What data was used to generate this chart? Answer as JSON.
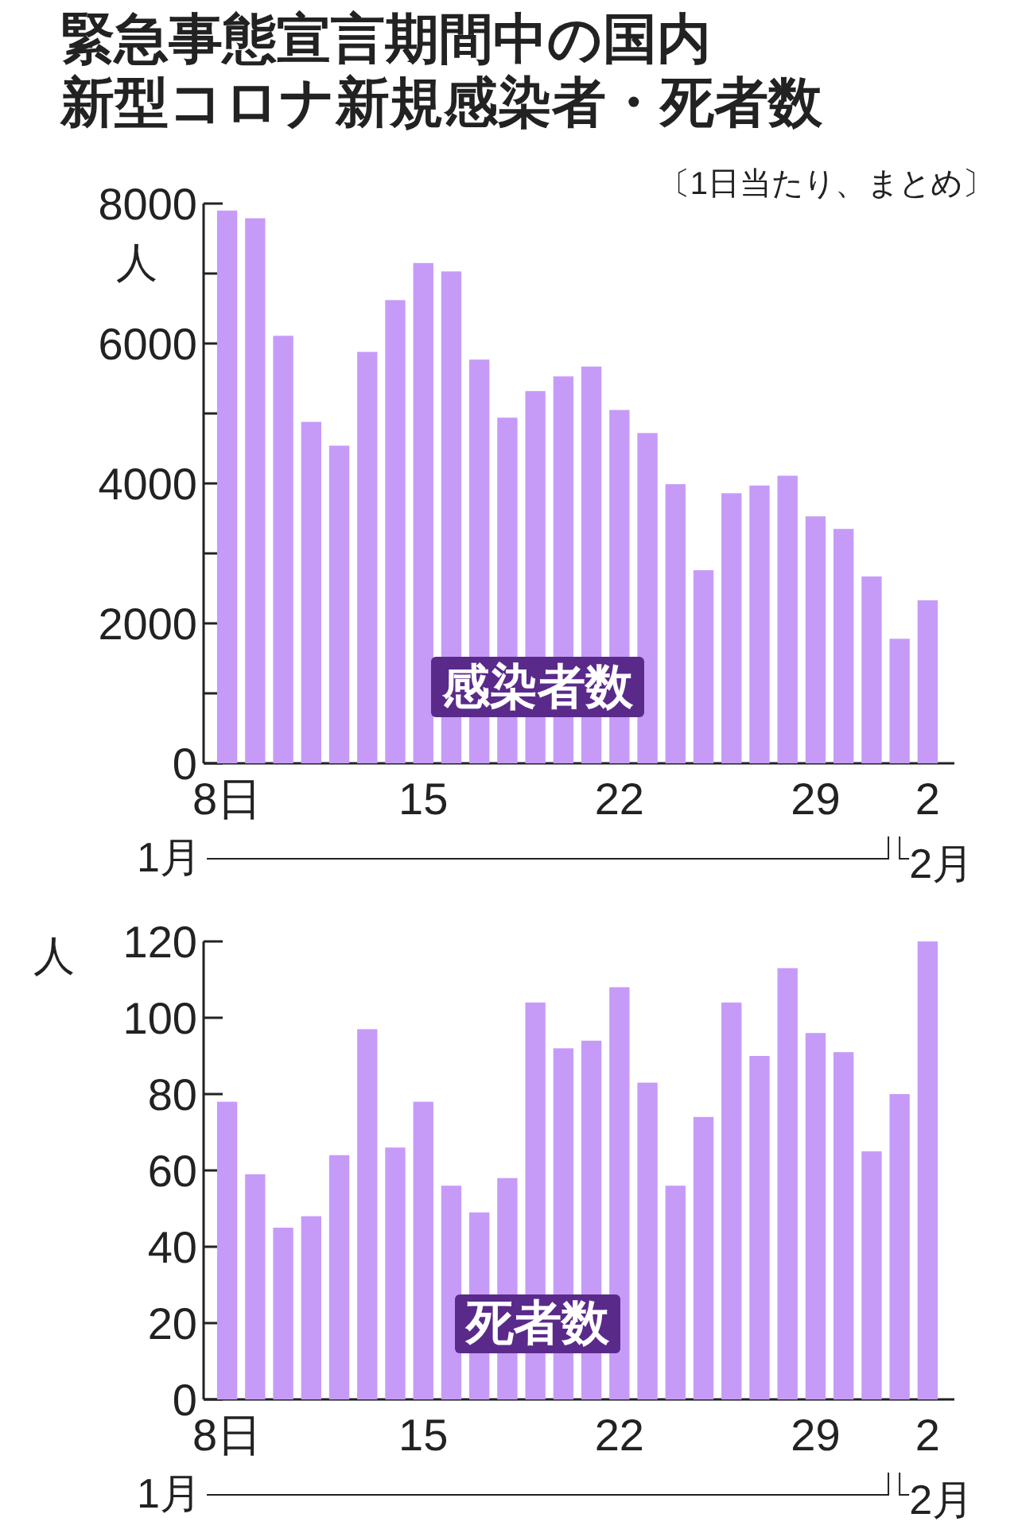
{
  "chart_data": [
    {
      "type": "bar",
      "title": "緊急事態宣言期間中の国内",
      "subtitle": "新型コロナ新規感染者・死者数",
      "ylabel": "人",
      "categories": [
        "8日",
        null,
        null,
        null,
        null,
        null,
        null,
        "15",
        null,
        null,
        null,
        null,
        null,
        null,
        "22",
        null,
        null,
        null,
        null,
        null,
        null,
        "29",
        null,
        null,
        null,
        "2"
      ],
      "series": [
        {
          "color": "#c69bf8",
          "values": [
            7900,
            7790,
            6110,
            4880,
            4540,
            5880,
            6620,
            7150,
            7030,
            5770,
            4940,
            5320,
            5530,
            5670,
            5050,
            4720,
            3990,
            2760,
            3860,
            3970,
            4110,
            3530,
            3350,
            2670,
            1780,
            2330
          ]
        }
      ],
      "ylim": [
        0,
        8000
      ],
      "yticks": [
        0,
        {
          "value": 1000,
          "label": null
        },
        2000,
        {
          "value": 3000,
          "label": null
        },
        4000,
        {
          "value": 5000,
          "label": null
        },
        6000,
        {
          "value": 7000,
          "label": null
        },
        8000
      ],
      "grid": false,
      "annotations": [
        "〔1日当たり、まとめ〕",
        "感染者数",
        "1月",
        "2月"
      ]
    },
    {
      "type": "bar",
      "ylabel": "人",
      "categories": [
        "8日",
        null,
        null,
        null,
        null,
        null,
        null,
        "15",
        null,
        null,
        null,
        null,
        null,
        null,
        "22",
        null,
        null,
        null,
        null,
        null,
        null,
        "29",
        null,
        null,
        null,
        "2"
      ],
      "series": [
        {
          "color": "#c69bf8",
          "values": [
            78,
            59,
            45,
            48,
            64,
            97,
            66,
            78,
            56,
            49,
            58,
            104,
            92,
            94,
            108,
            83,
            56,
            74,
            104,
            90,
            113,
            96,
            91,
            65,
            80,
            120
          ]
        }
      ],
      "ylim": [
        0,
        120
      ],
      "yticks": [
        0,
        20,
        40,
        60,
        80,
        100,
        120
      ],
      "grid": false,
      "annotations": [
        "死者数",
        "1月",
        "2月"
      ]
    }
  ]
}
